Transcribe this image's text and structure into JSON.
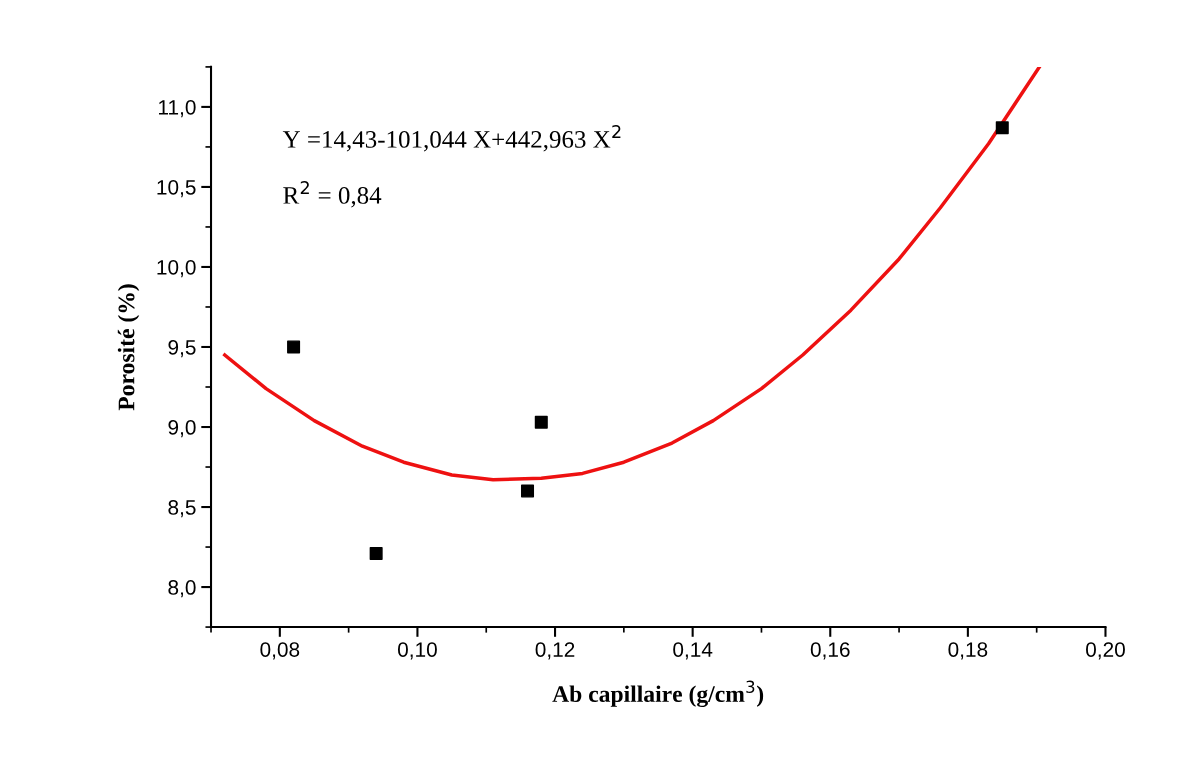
{
  "chart_data": {
    "type": "scatter",
    "xlabel": "Ab capillaire (g/cm$^{3}$)",
    "ylabel": "Porosité (%)",
    "xlim": [
      0.07,
      0.2
    ],
    "ylim": [
      7.75,
      11.25
    ],
    "xticks": [
      {
        "value": 0.08,
        "label": "0,08"
      },
      {
        "value": 0.1,
        "label": "0,10"
      },
      {
        "value": 0.12,
        "label": "0,12"
      },
      {
        "value": 0.14,
        "label": "0,14"
      },
      {
        "value": 0.16,
        "label": "0,16"
      },
      {
        "value": 0.18,
        "label": "0,18"
      },
      {
        "value": 0.2,
        "label": "0,20"
      }
    ],
    "yticks": [
      {
        "value": 8.0,
        "label": "8,0"
      },
      {
        "value": 8.5,
        "label": "8,5"
      },
      {
        "value": 9.0,
        "label": "9,0"
      },
      {
        "value": 9.5,
        "label": "9,5"
      },
      {
        "value": 10.0,
        "label": "10,0"
      },
      {
        "value": 10.5,
        "label": "10,5"
      },
      {
        "value": 11.0,
        "label": "11,0"
      }
    ],
    "grid": false,
    "legend": false,
    "series": [
      {
        "marker": "square",
        "color": "#000000",
        "x": [
          0.082,
          0.094,
          0.116,
          0.118,
          0.185
        ],
        "values": [
          9.5,
          8.21,
          8.6,
          9.03,
          10.87
        ]
      },
      {
        "type": "line",
        "marker": "none",
        "color": "#ee1111",
        "x": [
          0.072,
          0.078,
          0.085,
          0.092,
          0.098,
          0.105,
          0.111,
          0.118,
          0.124,
          0.13,
          0.137,
          0.143,
          0.15,
          0.156,
          0.163,
          0.17,
          0.176,
          0.183,
          0.1904
        ],
        "values": [
          9.45,
          9.24,
          9.04,
          8.88,
          8.78,
          8.7,
          8.67,
          8.68,
          8.71,
          8.78,
          8.9,
          9.04,
          9.24,
          9.45,
          9.73,
          10.05,
          10.37,
          10.77,
          11.25
        ]
      }
    ],
    "annotations": [
      "Y =14,43-101,044 X+442,963 X$^{2}$",
      "R$^{2}$ = 0,84"
    ]
  }
}
